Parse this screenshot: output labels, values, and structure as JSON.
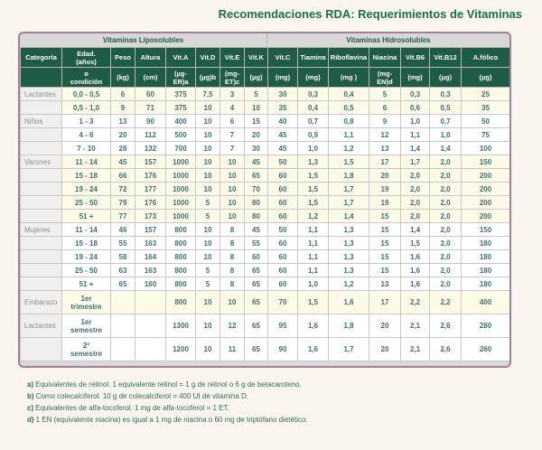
{
  "page": {
    "title": "Recomendaciones RDA: Requerimientos de Vitaminas"
  },
  "colors": {
    "title_green": "#15714a",
    "header_green": "#1f5c46",
    "band_gray": "#d8d8d8",
    "cream_row": "#fdfbe7",
    "data_teal": "#3d7072",
    "category_gray": "#8f8f8f",
    "border_purple": "#a37f97",
    "footnote_green": "#2d6e52"
  },
  "table": {
    "group_headers": [
      {
        "label": "Vitaminas Liposolubles",
        "span": 8
      },
      {
        "label": "Vitaminas Hidrosolubles",
        "span": 7
      }
    ],
    "columns": [
      {
        "label": "Categoría",
        "unit": ""
      },
      {
        "label": "Edad.\n(años)",
        "unit": "o\ncondición"
      },
      {
        "label": "Peso",
        "unit": "(kg)"
      },
      {
        "label": "Altura",
        "unit": "(cm)"
      },
      {
        "label": "Vit.A",
        "unit": "(µg-\nER)a"
      },
      {
        "label": "Vit.D",
        "unit": "(µg)b"
      },
      {
        "label": "Vit.E",
        "unit": "(mg-\nET)c"
      },
      {
        "label": "Vit.K",
        "unit": "(µg)"
      },
      {
        "label": "Vit.C",
        "unit": "(mg)"
      },
      {
        "label": "Tiamina",
        "unit": "(mg)"
      },
      {
        "label": "Riboflavina",
        "unit": "(mg )"
      },
      {
        "label": "Niacina",
        "unit": "(mg-\nEN)d"
      },
      {
        "label": "Vit.B6",
        "unit": "(mg)"
      },
      {
        "label": "Vit.B12",
        "unit": "(µg)"
      },
      {
        "label": "A.fólico",
        "unit": "(µg)"
      }
    ],
    "rows": [
      {
        "category": "Lactantes",
        "edad": "0,0 - 0,5",
        "values": [
          "6",
          "60",
          "375",
          "7,5",
          "3",
          "5",
          "30",
          "0,3",
          "0,4",
          "5",
          "0,3",
          "0,3",
          "25"
        ],
        "shade": "cream",
        "tall": false
      },
      {
        "category": "",
        "edad": "0,5 - 1,0",
        "values": [
          "9",
          "71",
          "375",
          "10",
          "4",
          "10",
          "35",
          "0,4",
          "0,5",
          "6",
          "0,6",
          "0,5",
          "35"
        ],
        "shade": "cream",
        "tall": false
      },
      {
        "category": "Niños",
        "edad": "1 - 3",
        "values": [
          "13",
          "90",
          "400",
          "10",
          "6",
          "15",
          "40",
          "0,7",
          "0,8",
          "9",
          "1,0",
          "0,7",
          "50"
        ],
        "shade": "white",
        "tall": false
      },
      {
        "category": "",
        "edad": "4 - 6",
        "values": [
          "20",
          "112",
          "500",
          "10",
          "7",
          "20",
          "45",
          "0,9",
          "1,1",
          "12",
          "1,1",
          "1,0",
          "75"
        ],
        "shade": "white",
        "tall": false
      },
      {
        "category": "",
        "edad": "7 - 10",
        "values": [
          "28",
          "132",
          "700",
          "10",
          "7",
          "30",
          "45",
          "1,0",
          "1,2",
          "13",
          "1,4",
          "1,4",
          "100"
        ],
        "shade": "white",
        "tall": false
      },
      {
        "category": "Varones",
        "edad": "11 - 14",
        "values": [
          "45",
          "157",
          "1000",
          "10",
          "10",
          "45",
          "50",
          "1,3",
          "1,5",
          "17",
          "1,7",
          "2,0",
          "150"
        ],
        "shade": "cream",
        "tall": false
      },
      {
        "category": "",
        "edad": "15 - 18",
        "values": [
          "66",
          "176",
          "1000",
          "10",
          "10",
          "65",
          "60",
          "1,5",
          "1,8",
          "20",
          "2,0",
          "2,0",
          "200"
        ],
        "shade": "cream",
        "tall": false
      },
      {
        "category": "",
        "edad": "19 - 24",
        "values": [
          "72",
          "177",
          "1000",
          "10",
          "10",
          "70",
          "60",
          "1,5",
          "1,7",
          "19",
          "2,0",
          "2,0",
          "200"
        ],
        "shade": "cream",
        "tall": false
      },
      {
        "category": "",
        "edad": "25 - 50",
        "values": [
          "79",
          "176",
          "1000",
          "5",
          "10",
          "80",
          "60",
          "1,5",
          "1,7",
          "19",
          "2,0",
          "2,0",
          "200"
        ],
        "shade": "cream",
        "tall": false
      },
      {
        "category": "",
        "edad": "51 +",
        "values": [
          "77",
          "173",
          "1000",
          "5",
          "10",
          "80",
          "60",
          "1,2",
          "1,4",
          "15",
          "2,0",
          "2,0",
          "200"
        ],
        "shade": "cream",
        "tall": false
      },
      {
        "category": "Mujeres",
        "edad": "11 - 14",
        "values": [
          "46",
          "157",
          "800",
          "10",
          "8",
          "45",
          "50",
          "1,1",
          "1,3",
          "15",
          "1,4",
          "2,0",
          "150"
        ],
        "shade": "white",
        "tall": false
      },
      {
        "category": "",
        "edad": "15 - 18",
        "values": [
          "55",
          "163",
          "800",
          "10",
          "8",
          "55",
          "60",
          "1,1",
          "1,3",
          "15",
          "1,5",
          "2,0",
          "180"
        ],
        "shade": "white",
        "tall": false
      },
      {
        "category": "",
        "edad": "19 - 24",
        "values": [
          "58",
          "164",
          "800",
          "10",
          "8",
          "60",
          "60",
          "1,1",
          "1,3",
          "15",
          "1,6",
          "2,0",
          "180"
        ],
        "shade": "white",
        "tall": false
      },
      {
        "category": "",
        "edad": "25 - 50",
        "values": [
          "63",
          "163",
          "800",
          "5",
          "8",
          "65",
          "60",
          "1,1",
          "1,3",
          "15",
          "1,6",
          "2,0",
          "180"
        ],
        "shade": "white",
        "tall": false
      },
      {
        "category": "",
        "edad": "51 +",
        "values": [
          "65",
          "160",
          "800",
          "5",
          "8",
          "65",
          "60",
          "1,0",
          "1,2",
          "13",
          "1,6",
          "2,0",
          "180"
        ],
        "shade": "white",
        "tall": false
      },
      {
        "category": "Embarazo",
        "edad": "1er\ntrimestre",
        "values": [
          "",
          "",
          "800",
          "10",
          "10",
          "65",
          "70",
          "1,5",
          "1,6",
          "17",
          "2,2",
          "2,2",
          "400"
        ],
        "shade": "cream",
        "tall": true
      },
      {
        "category": "Lactantes",
        "edad": "1er\nsemestre",
        "values": [
          "",
          "",
          "1300",
          "10",
          "12",
          "65",
          "95",
          "1,6",
          "1,8",
          "20",
          "2,1",
          "2,6",
          "280"
        ],
        "shade": "white",
        "tall": true
      },
      {
        "category": "",
        "edad": "2º\nsemestre",
        "values": [
          "",
          "",
          "1200",
          "10",
          "11",
          "65",
          "90",
          "1,6",
          "1,7",
          "20",
          "2,1",
          "2,6",
          "260"
        ],
        "shade": "white",
        "tall": true
      }
    ]
  },
  "footnotes": [
    {
      "label": "a)",
      "text": "Equivalentes de retinol. 1 equivalente retinol = 1 g de retinol o 6 g de betacaroteno."
    },
    {
      "label": "b)",
      "text": "Como colecalciferol. 10 g de colecalciferol = 400 UI de vitamina D."
    },
    {
      "label": "c)",
      "text": "Equivalentes de alfa-tocoferol. 1 mg de alfa-tocoferol = 1 ET."
    },
    {
      "label": "d)",
      "text": "1 EN (equivalente niacina) es igual a 1 mg de niacina o 60 mg de triptófano dietético."
    }
  ]
}
